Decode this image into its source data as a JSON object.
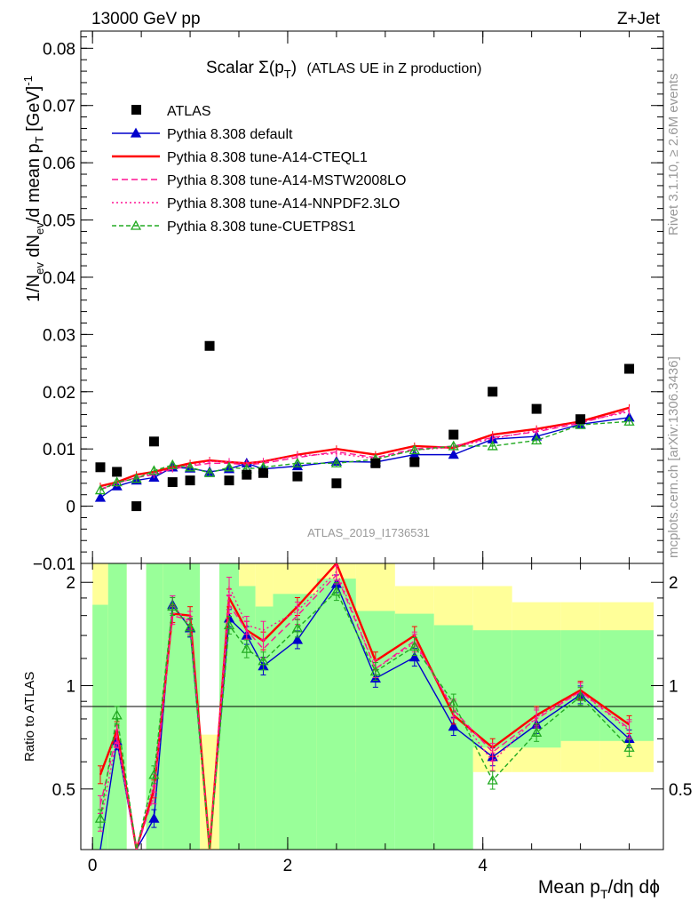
{
  "header": {
    "left": "13000 GeV pp",
    "right": "Z+Jet",
    "title_main": "Scalar Σ(p",
    "title_sub": "T",
    "title_close": ")",
    "title_rest": "(ATLAS UE in Z production)",
    "side_right_top": "Rivet 3.1.10, ≥ 2.6M events",
    "side_right_bottom": "mcplots.cern.ch [arXiv:1306.3436]",
    "analysis_tag": "ATLAS_2019_I1736531"
  },
  "axes": {
    "main_ylabel": "1/N_ev dN_ev/d mean p_T [GeV]^-1",
    "ratio_ylabel": "Ratio to ATLAS",
    "xlabel": "Mean p_T/dη dϕ"
  },
  "legend": [
    {
      "key": "atlas",
      "label": "ATLAS"
    },
    {
      "key": "def",
      "label": "Pythia 8.308 default"
    },
    {
      "key": "cteq",
      "label": "Pythia 8.308 tune-A14-CTEQL1"
    },
    {
      "key": "mstw",
      "label": "Pythia 8.308 tune-A14-MSTW2008LO"
    },
    {
      "key": "nnpdf",
      "label": "Pythia 8.308 tune-A14-NNPDF2.3LO"
    },
    {
      "key": "cuetp",
      "label": "Pythia 8.308 tune-CUETP8S1"
    }
  ],
  "chart_data": {
    "type": "scatter",
    "xlim": [
      -0.12,
      5.85
    ],
    "ylim": [
      -0.01,
      0.083
    ],
    "ratio_ylim": [
      0.333,
      2.27
    ],
    "main_yticks": [
      -0.01,
      0,
      0.01,
      0.02,
      0.03,
      0.04,
      0.05,
      0.06,
      0.07,
      0.08
    ],
    "main_ytick_labels": [
      "−0.01",
      "0",
      "0.01",
      "0.02",
      "0.03",
      "0.04",
      "0.05",
      "0.06",
      "0.07",
      "0.08"
    ],
    "xticks": [
      0,
      2,
      4
    ],
    "xtick_labels": [
      "0",
      "2",
      "4"
    ],
    "ratio_yticks": [
      0.5,
      1,
      2
    ],
    "ratio_ytick_labels": [
      "0.5",
      "1",
      "2"
    ],
    "x": [
      0.08,
      0.25,
      0.45,
      0.63,
      0.82,
      1.0,
      1.2,
      1.4,
      1.58,
      1.75,
      2.1,
      2.5,
      2.9,
      3.3,
      3.7,
      4.1,
      4.55,
      5.0,
      5.5
    ],
    "atlas": [
      0.0068,
      0.006,
      0.0,
      0.0113,
      0.0042,
      0.0045,
      0.028,
      0.0045,
      0.0055,
      0.0058,
      0.0052,
      0.004,
      0.0075,
      0.0077,
      0.0125,
      0.02,
      0.017,
      0.0152,
      0.024
    ],
    "series": [
      {
        "name": "Pythia 8.308 default",
        "key": "def",
        "color": "#0000cc",
        "dash": "",
        "marker": "tri-filled",
        "values": [
          0.0015,
          0.0035,
          0.0045,
          0.005,
          0.0068,
          0.0066,
          0.006,
          0.0065,
          0.0075,
          0.0065,
          0.007,
          0.0078,
          0.0077,
          0.009,
          0.009,
          0.0117,
          0.0122,
          0.0143,
          0.0155
        ],
        "ratio": [
          0.22,
          0.69,
          0.0,
          0.41,
          1.72,
          1.47,
          0.22,
          1.57,
          1.4,
          1.14,
          1.36,
          1.98,
          1.05,
          1.21,
          0.76,
          0.62,
          0.77,
          0.94,
          0.7
        ]
      },
      {
        "name": "Pythia 8.308 tune-A14-CTEQL1",
        "key": "cteq",
        "color": "#ff0000",
        "dash": "",
        "marker": "none",
        "values": [
          0.0035,
          0.0042,
          0.0055,
          0.006,
          0.0068,
          0.0075,
          0.008,
          0.0077,
          0.0075,
          0.0078,
          0.009,
          0.01,
          0.009,
          0.0105,
          0.0102,
          0.0125,
          0.0135,
          0.0148,
          0.0172
        ],
        "ratio": [
          0.55,
          0.74,
          0.0,
          0.5,
          1.62,
          1.6,
          0.22,
          1.8,
          1.45,
          1.35,
          1.7,
          2.28,
          1.18,
          1.4,
          0.82,
          0.66,
          0.82,
          0.97,
          0.77
        ]
      },
      {
        "name": "Pythia 8.308 tune-A14-MSTW2008LO",
        "key": "mstw",
        "color": "#ff1493",
        "dash": "7,4",
        "marker": "none",
        "values": [
          0.003,
          0.004,
          0.005,
          0.0055,
          0.0065,
          0.007,
          0.0075,
          0.0075,
          0.0072,
          0.0075,
          0.0085,
          0.0095,
          0.0085,
          0.01,
          0.0105,
          0.012,
          0.013,
          0.0145,
          0.0168
        ],
        "ratio": [
          0.45,
          0.72,
          0.0,
          0.48,
          1.6,
          1.55,
          0.22,
          1.72,
          1.45,
          1.28,
          1.6,
          2.1,
          1.12,
          1.35,
          0.85,
          0.64,
          0.8,
          0.96,
          0.75
        ]
      },
      {
        "name": "Pythia 8.308 tune-A14-NNPDF2.3LO",
        "key": "nnpdf",
        "color": "#ff1493",
        "dash": "2,3",
        "marker": "none",
        "values": [
          0.0028,
          0.004,
          0.005,
          0.0057,
          0.0066,
          0.0072,
          0.0078,
          0.0078,
          0.0075,
          0.0078,
          0.0088,
          0.0092,
          0.0083,
          0.0098,
          0.0103,
          0.0118,
          0.0132,
          0.0147,
          0.0165
        ],
        "ratio": [
          0.4,
          0.7,
          0.0,
          0.52,
          1.72,
          1.5,
          0.22,
          1.95,
          1.5,
          1.45,
          1.65,
          2.15,
          1.12,
          1.33,
          0.86,
          0.6,
          0.81,
          0.96,
          0.74
        ]
      },
      {
        "name": "Pythia 8.308 tune-CUETP8S1",
        "key": "cuetp",
        "color": "#22aa22",
        "dash": "5,3",
        "marker": "tri-open",
        "values": [
          0.0028,
          0.0042,
          0.0048,
          0.0062,
          0.0072,
          0.0068,
          0.0058,
          0.0068,
          0.0065,
          0.0068,
          0.0075,
          0.0075,
          0.0082,
          0.0098,
          0.0105,
          0.0105,
          0.0115,
          0.0142,
          0.0148
        ],
        "ratio": [
          0.41,
          0.82,
          0.0,
          0.55,
          1.7,
          1.48,
          0.22,
          1.5,
          1.28,
          1.18,
          1.47,
          1.88,
          1.1,
          1.3,
          0.89,
          0.53,
          0.73,
          0.93,
          0.66
        ]
      }
    ],
    "bands": [
      {
        "x0": 0.0,
        "x1": 0.16,
        "g": [
          0.333,
          1.72
        ],
        "y": [
          0.333,
          2.27
        ]
      },
      {
        "x0": 0.16,
        "x1": 0.35,
        "g": [
          0.333,
          2.27
        ],
        "y": [
          0.333,
          2.27
        ]
      },
      {
        "x0": 0.55,
        "x1": 0.72,
        "g": [
          0.333,
          2.27
        ],
        "y": [
          0.333,
          2.27
        ]
      },
      {
        "x0": 0.72,
        "x1": 1.1,
        "g": [
          0.333,
          2.27
        ],
        "y": [
          0.333,
          2.27
        ]
      },
      {
        "x0": 1.1,
        "x1": 1.3,
        "g": [
          0.333,
          0.333
        ],
        "y": [
          0.333,
          0.72
        ]
      },
      {
        "x0": 1.3,
        "x1": 1.5,
        "g": [
          0.333,
          2.27
        ],
        "y": [
          0.333,
          2.27
        ]
      },
      {
        "x0": 1.5,
        "x1": 1.67,
        "g": [
          0.333,
          1.95
        ],
        "y": [
          0.333,
          2.27
        ]
      },
      {
        "x0": 1.67,
        "x1": 1.85,
        "g": [
          0.333,
          1.7
        ],
        "y": [
          0.333,
          2.27
        ]
      },
      {
        "x0": 1.85,
        "x1": 2.3,
        "g": [
          0.333,
          1.85
        ],
        "y": [
          0.48,
          2.27
        ]
      },
      {
        "x0": 2.3,
        "x1": 2.7,
        "g": [
          0.333,
          2.05
        ],
        "y": [
          0.333,
          2.27
        ]
      },
      {
        "x0": 2.7,
        "x1": 3.1,
        "g": [
          0.333,
          1.65
        ],
        "y": [
          0.56,
          2.27
        ]
      },
      {
        "x0": 3.1,
        "x1": 3.5,
        "g": [
          0.333,
          1.62
        ],
        "y": [
          0.56,
          1.95
        ]
      },
      {
        "x0": 3.5,
        "x1": 3.9,
        "g": [
          0.333,
          1.5
        ],
        "y": [
          0.56,
          1.95
        ]
      },
      {
        "x0": 3.9,
        "x1": 4.3,
        "g": [
          0.66,
          1.45
        ],
        "y": [
          0.56,
          1.95
        ]
      },
      {
        "x0": 4.3,
        "x1": 4.8,
        "g": [
          0.66,
          1.45
        ],
        "y": [
          0.56,
          1.75
        ]
      },
      {
        "x0": 4.8,
        "x1": 5.2,
        "g": [
          0.69,
          1.45
        ],
        "y": [
          0.56,
          1.75
        ]
      },
      {
        "x0": 5.2,
        "x1": 5.75,
        "g": [
          0.69,
          1.45
        ],
        "y": [
          0.56,
          1.75
        ]
      }
    ],
    "band_colors": {
      "green": "#99ff99",
      "yellow": "#ffff99"
    }
  }
}
